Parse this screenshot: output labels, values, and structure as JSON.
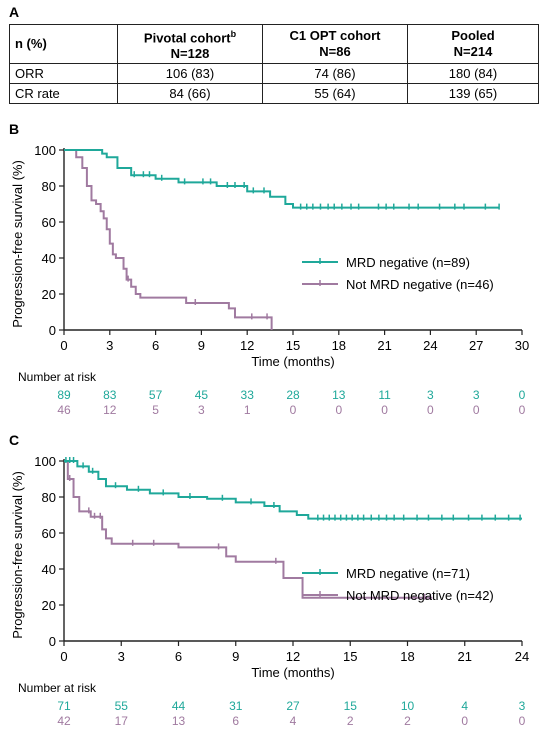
{
  "panels": {
    "a": "A",
    "b": "B",
    "c": "C"
  },
  "table": {
    "row_header": "n (%)",
    "columns": [
      {
        "name": "Pivotal cohort",
        "sup": "b",
        "n": "N=128"
      },
      {
        "name": "C1 OPT cohort",
        "sup": "",
        "n": "N=86"
      },
      {
        "name": "Pooled",
        "sup": "",
        "n": "N=214"
      }
    ],
    "rows": [
      {
        "label": "ORR",
        "values": [
          "106 (83)",
          "74 (86)",
          "180 (84)"
        ]
      },
      {
        "label": "CR rate",
        "values": [
          "84 (66)",
          "55 (64)",
          "139 (65)"
        ]
      }
    ]
  },
  "chart_data": [
    {
      "type": "line",
      "panel": "B",
      "ylabel": "Progression-free survival (%)",
      "xlabel": "Time (months)",
      "xlim": [
        0,
        30
      ],
      "ylim": [
        0,
        100
      ],
      "xticks": [
        0,
        3,
        6,
        9,
        12,
        15,
        18,
        21,
        24,
        27,
        30
      ],
      "yticks": [
        0,
        20,
        40,
        60,
        80,
        100
      ],
      "legend_position": "right-middle",
      "series": [
        {
          "name": "MRD negative (n=89)",
          "color": "#1fa89a",
          "steps": [
            [
              0,
              100
            ],
            [
              2.5,
              98
            ],
            [
              2.8,
              96
            ],
            [
              3.5,
              90
            ],
            [
              4.4,
              86
            ],
            [
              6,
              84
            ],
            [
              7.5,
              82
            ],
            [
              10,
              80
            ],
            [
              12,
              77
            ],
            [
              13.5,
              74
            ],
            [
              14.5,
              70
            ],
            [
              15,
              68
            ],
            [
              28.5,
              68
            ]
          ],
          "censor": [
            4.6,
            5.2,
            5.6,
            6.4,
            7.9,
            9.1,
            9.6,
            10.7,
            11.2,
            11.8,
            12.4,
            13.1,
            15.5,
            15.9,
            16.3,
            16.8,
            17.3,
            17.7,
            18.2,
            18.8,
            19.3,
            20.6,
            21.1,
            21.6,
            22.6,
            23.2,
            24.6,
            25.6,
            26.2,
            27.6,
            28.5
          ]
        },
        {
          "name": "Not MRD negative (n=46)",
          "color": "#a07aa0",
          "steps": [
            [
              0,
              100
            ],
            [
              0.8,
              96
            ],
            [
              1.2,
              90
            ],
            [
              1.5,
              80
            ],
            [
              1.8,
              72
            ],
            [
              2.1,
              70
            ],
            [
              2.4,
              66
            ],
            [
              2.6,
              62
            ],
            [
              2.8,
              56
            ],
            [
              3.0,
              48
            ],
            [
              3.2,
              42
            ],
            [
              3.4,
              40
            ],
            [
              3.9,
              34
            ],
            [
              4.1,
              28
            ],
            [
              4.4,
              24
            ],
            [
              4.7,
              20
            ],
            [
              5.0,
              18
            ],
            [
              8.0,
              15
            ],
            [
              10.8,
              12
            ],
            [
              11.2,
              7
            ],
            [
              13.6,
              0
            ]
          ],
          "censor": [
            4.2,
            8.6,
            12.3,
            13.3
          ]
        }
      ],
      "risk_label": "Number at risk",
      "risk_times": [
        0,
        3,
        6,
        9,
        12,
        15,
        18,
        21,
        24,
        27,
        30
      ],
      "risk": [
        {
          "color": "#1fa89a",
          "values": [
            "89",
            "83",
            "57",
            "45",
            "33",
            "28",
            "13",
            "11",
            "3",
            "3",
            "0"
          ]
        },
        {
          "color": "#a07aa0",
          "values": [
            "46",
            "12",
            "5",
            "3",
            "1",
            "0",
            "0",
            "0",
            "0",
            "0",
            "0"
          ]
        }
      ]
    },
    {
      "type": "line",
      "panel": "C",
      "ylabel": "Progression-free survival (%)",
      "xlabel": "Time (months)",
      "xlim": [
        0,
        24
      ],
      "ylim": [
        0,
        100
      ],
      "xticks": [
        0,
        3,
        6,
        9,
        12,
        15,
        18,
        21,
        24
      ],
      "yticks": [
        0,
        20,
        40,
        60,
        80,
        100
      ],
      "legend_position": "right-middle",
      "series": [
        {
          "name": "MRD negative (n=71)",
          "color": "#1fa89a",
          "steps": [
            [
              0,
              100
            ],
            [
              0.7,
              97
            ],
            [
              1.3,
              94
            ],
            [
              1.8,
              90
            ],
            [
              2.2,
              86
            ],
            [
              3.3,
              84
            ],
            [
              4.5,
              82
            ],
            [
              6.0,
              80
            ],
            [
              7.5,
              79
            ],
            [
              9.0,
              77
            ],
            [
              10.5,
              75
            ],
            [
              11.3,
              72
            ],
            [
              12.2,
              70
            ],
            [
              12.8,
              68
            ],
            [
              24,
              68
            ]
          ],
          "censor": [
            0.1,
            0.3,
            0.5,
            1.0,
            1.5,
            2.7,
            3.9,
            5.2,
            6.6,
            8.3,
            9.8,
            11.0,
            13.3,
            13.6,
            13.9,
            14.2,
            14.5,
            14.8,
            15.1,
            15.4,
            15.7,
            16.1,
            16.5,
            16.9,
            17.3,
            17.8,
            18.5,
            19.1,
            19.8,
            20.4,
            21.2,
            21.9,
            22.6,
            23.3,
            23.9
          ]
        },
        {
          "name": "Not MRD negative (n=42)",
          "color": "#a07aa0",
          "steps": [
            [
              0,
              100
            ],
            [
              0.2,
              90
            ],
            [
              0.5,
              80
            ],
            [
              0.8,
              72
            ],
            [
              1.4,
              69
            ],
            [
              2.0,
              62
            ],
            [
              2.2,
              57
            ],
            [
              2.5,
              54
            ],
            [
              6.0,
              52
            ],
            [
              8.5,
              47
            ],
            [
              9.0,
              44
            ],
            [
              11.5,
              35
            ],
            [
              12.5,
              24
            ],
            [
              19.3,
              24
            ]
          ],
          "censor": [
            0.3,
            1.3,
            1.6,
            1.9,
            3.6,
            4.7,
            8.1,
            11.1,
            18.9,
            19.2
          ]
        }
      ],
      "risk_label": "Number at risk",
      "risk_times": [
        0,
        3,
        6,
        9,
        12,
        15,
        18,
        21,
        24
      ],
      "risk": [
        {
          "color": "#1fa89a",
          "values": [
            "71",
            "55",
            "44",
            "31",
            "27",
            "15",
            "10",
            "4",
            "3"
          ]
        },
        {
          "color": "#a07aa0",
          "values": [
            "42",
            "17",
            "13",
            "6",
            "4",
            "2",
            "2",
            "0",
            "0"
          ]
        }
      ]
    }
  ]
}
